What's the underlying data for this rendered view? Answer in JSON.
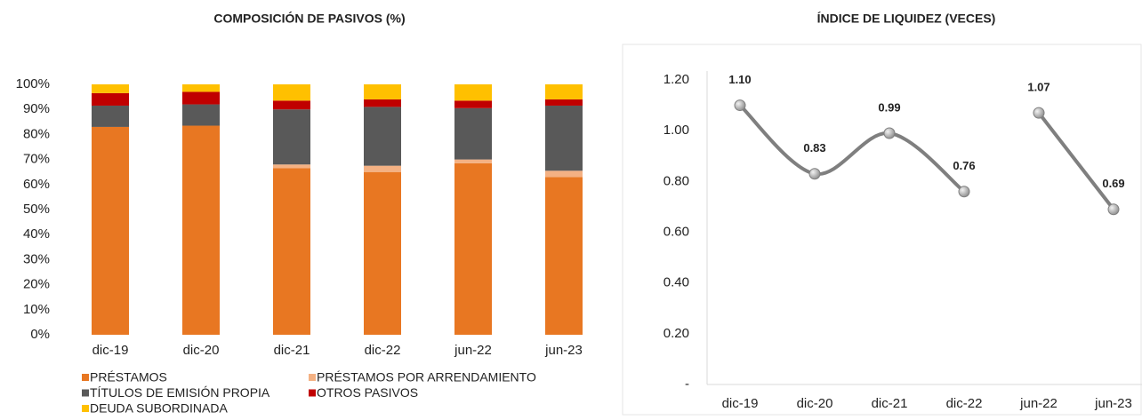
{
  "chart_data": [
    {
      "type": "stacked_bar",
      "title": "COMPOSICIÓN DE PASIVOS (%)",
      "categories": [
        "dic-19",
        "dic-20",
        "dic-21",
        "dic-22",
        "jun-22",
        "jun-23"
      ],
      "series": [
        {
          "name": "PRÉSTAMOS",
          "color": "#e87722",
          "values": [
            83,
            83.5,
            66.5,
            65,
            68.5,
            63
          ]
        },
        {
          "name": "PRÉSTAMOS POR ARRENDAMIENTO",
          "color": "#f4b183",
          "values": [
            0,
            0,
            1.5,
            2.5,
            1.5,
            2.5
          ]
        },
        {
          "name": "TÍTULOS DE EMISIÓN PROPIA",
          "color": "#595959",
          "values": [
            8.5,
            8.5,
            22,
            23.5,
            20.5,
            26
          ]
        },
        {
          "name": "OTROS PASIVOS",
          "color": "#c00000",
          "values": [
            5,
            5,
            3.5,
            3,
            3,
            2.5
          ]
        },
        {
          "name": "DEUDA SUBORDINADA",
          "color": "#ffc000",
          "values": [
            3.5,
            3,
            6.5,
            6,
            6.5,
            6
          ]
        }
      ],
      "ylim": [
        0,
        100
      ],
      "yticks": [
        {
          "value": 0,
          "label": "0%"
        },
        {
          "value": 10,
          "label": "10%"
        },
        {
          "value": 20,
          "label": "20%"
        },
        {
          "value": 30,
          "label": "30%"
        },
        {
          "value": 40,
          "label": "40%"
        },
        {
          "value": 50,
          "label": "50%"
        },
        {
          "value": 60,
          "label": "60%"
        },
        {
          "value": 70,
          "label": "70%"
        },
        {
          "value": 80,
          "label": "80%"
        },
        {
          "value": 90,
          "label": "90%"
        },
        {
          "value": 100,
          "label": "100%"
        }
      ]
    },
    {
      "type": "line",
      "title": "ÍNDICE DE LIQUIDEZ (VECES)",
      "categories": [
        "dic-19",
        "dic-20",
        "dic-21",
        "dic-22",
        "jun-22",
        "jun-23"
      ],
      "series": [
        {
          "color": "#7f7f7f",
          "values": [
            1.1,
            0.83,
            0.99,
            0.76,
            null,
            null
          ],
          "value_labels": [
            "1.10",
            "0.83",
            "0.99",
            "0.76",
            null,
            null
          ]
        },
        {
          "color": "#7f7f7f",
          "values": [
            null,
            null,
            null,
            null,
            1.07,
            0.69
          ],
          "value_labels": [
            null,
            null,
            null,
            null,
            "1.07",
            "0.69"
          ]
        }
      ],
      "ylim": [
        0,
        1.2
      ],
      "yticks": [
        {
          "value": 0,
          "label": "-"
        },
        {
          "value": 0.2,
          "label": "0.20"
        },
        {
          "value": 0.4,
          "label": "0.40"
        },
        {
          "value": 0.6,
          "label": "0.60"
        },
        {
          "value": 0.8,
          "label": "0.80"
        },
        {
          "value": 1.0,
          "label": "1.00"
        },
        {
          "value": 1.2,
          "label": "1.20"
        }
      ]
    }
  ]
}
